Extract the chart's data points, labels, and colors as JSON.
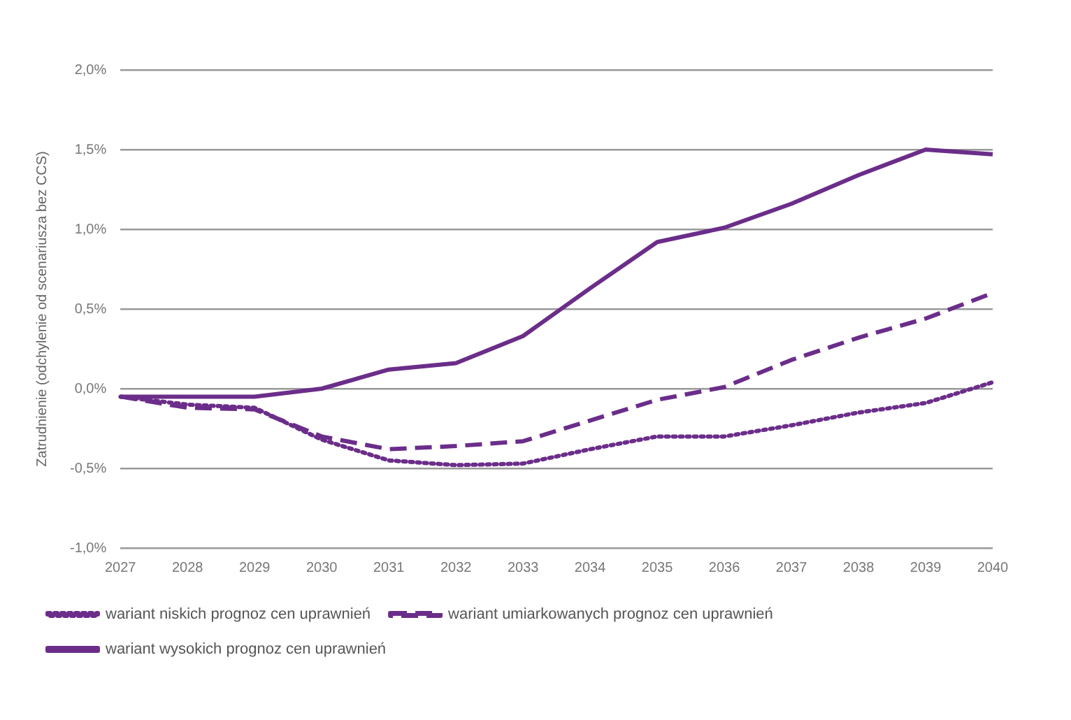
{
  "chart_data": {
    "type": "line",
    "ylabel": "Zatrudnienie (odchylenie od scenariusza bez CCS)",
    "categories": [
      "2027",
      "2028",
      "2029",
      "2030",
      "2031",
      "2032",
      "2033",
      "2034",
      "2035",
      "2036",
      "2037",
      "2038",
      "2039",
      "2040"
    ],
    "ylim": [
      -1.0,
      2.0
    ],
    "yticks": [
      {
        "value": -1.0,
        "label": "-1,0%"
      },
      {
        "value": -0.5,
        "label": "-0,5%"
      },
      {
        "value": 0,
        "label": "0,0%"
      },
      {
        "value": 0.5,
        "label": "0,5%"
      },
      {
        "value": 1.0,
        "label": "1,0%"
      },
      {
        "value": 1.5,
        "label": "1,5%"
      },
      {
        "value": 2.0,
        "label": "2,0%"
      }
    ],
    "grid": "y",
    "legend": "bottom",
    "marker": "none",
    "series": [
      {
        "name": "wariant niskich prognoz cen uprawnień",
        "color": "#6b2d8a",
        "line_style": "dotted",
        "values": [
          -0.05,
          -0.1,
          -0.12,
          -0.32,
          -0.45,
          -0.48,
          -0.47,
          -0.38,
          -0.3,
          -0.3,
          -0.23,
          -0.15,
          -0.09,
          0.04
        ]
      },
      {
        "name": "wariant umiarkowanych prognoz cen uprawnień",
        "color": "#6b2d8a",
        "line_style": "dashed",
        "values": [
          -0.05,
          -0.12,
          -0.13,
          -0.3,
          -0.38,
          -0.36,
          -0.33,
          -0.2,
          -0.07,
          0.01,
          0.18,
          0.32,
          0.44,
          0.6
        ]
      },
      {
        "name": "wariant wysokich prognoz cen uprawnień",
        "color": "#6b2d8a",
        "line_style": "solid",
        "values": [
          -0.05,
          -0.05,
          -0.05,
          0.0,
          0.12,
          0.16,
          0.33,
          0.63,
          0.92,
          1.01,
          1.16,
          1.34,
          1.5,
          1.47
        ]
      }
    ]
  }
}
